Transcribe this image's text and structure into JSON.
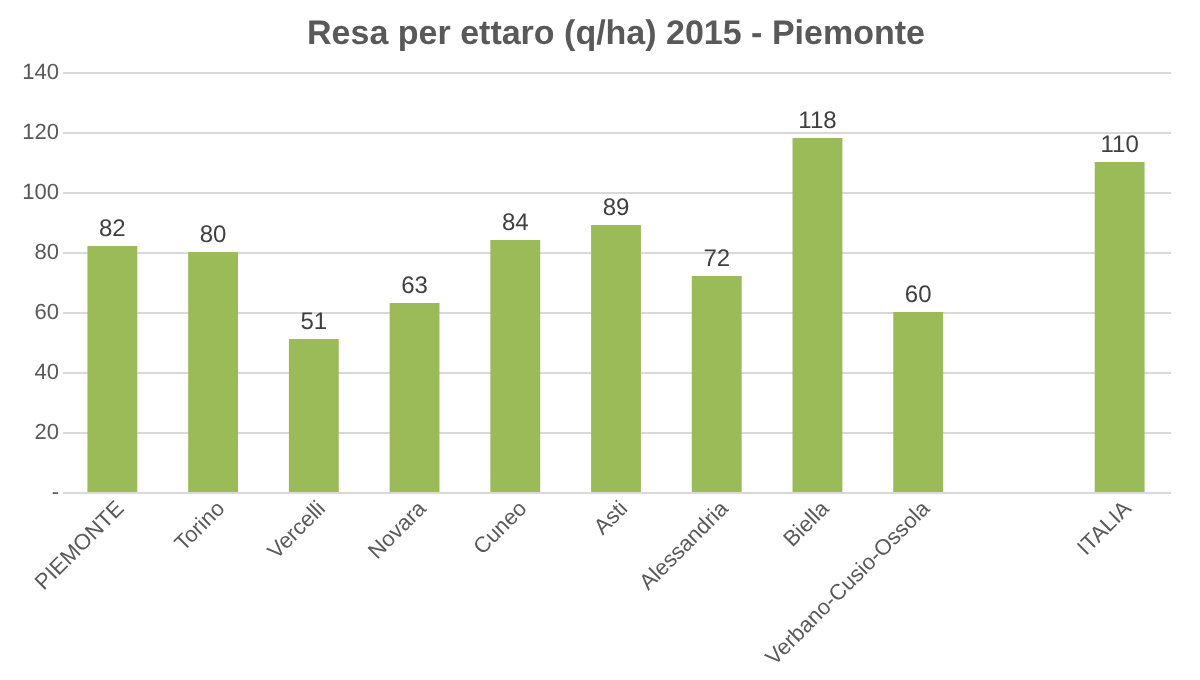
{
  "chart_data": {
    "type": "bar",
    "title": "Resa per ettaro (q/ha) 2015 - Piemonte",
    "categories": [
      "PIEMONTE",
      "Torino",
      "Vercelli",
      "Novara",
      "Cuneo",
      "Asti",
      "Alessandria",
      "Biella",
      "Verbano-Cusio-Ossola",
      null,
      "ITALIA"
    ],
    "values": [
      82,
      80,
      51,
      63,
      84,
      89,
      72,
      118,
      60,
      null,
      110
    ],
    "color": "#9bbb59",
    "ylim": [
      0,
      140
    ],
    "yticks": [
      {
        "value": 0,
        "label": "-"
      },
      20,
      40,
      60,
      80,
      100,
      120,
      140
    ],
    "grid": "y",
    "data_labels": true
  }
}
